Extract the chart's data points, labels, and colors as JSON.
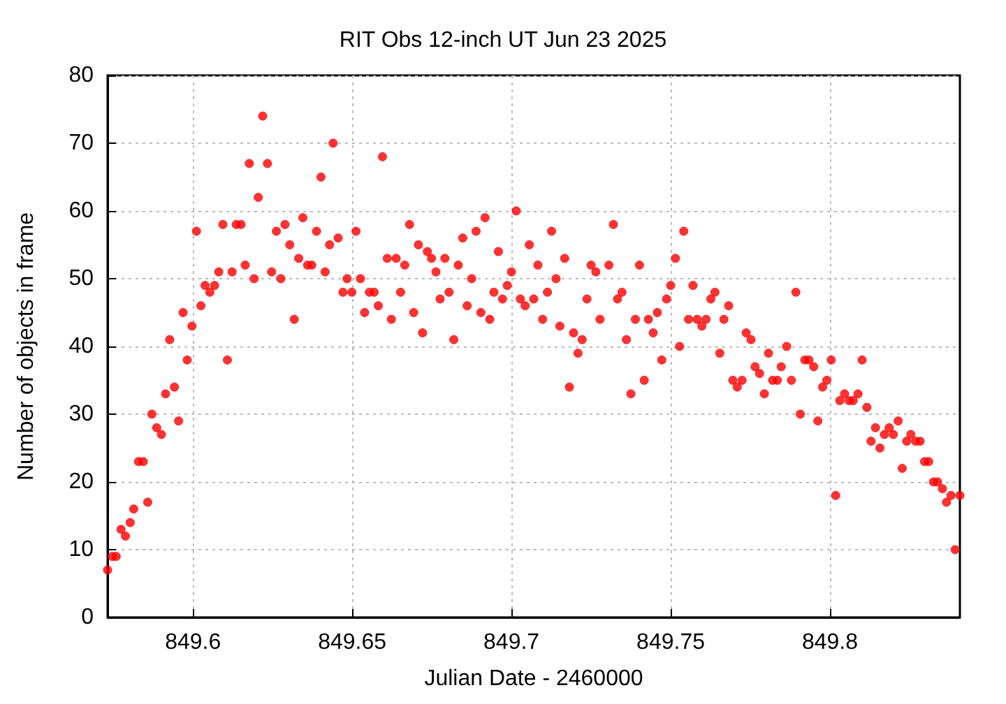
{
  "chart_data": {
    "type": "scatter",
    "title": "RIT Obs 12-inch UT Jun 23 2025",
    "xlabel": "Julian Date - 2460000",
    "ylabel": "Number of objects in frame",
    "x": [
      849.5732,
      849.5747,
      849.5759,
      849.5774,
      849.5788,
      849.5803,
      849.5814,
      849.5829,
      849.5844,
      849.5858,
      849.5871,
      849.5886,
      849.5901,
      849.5914,
      849.5927,
      849.5942,
      849.5955,
      849.5969,
      849.5982,
      849.5997,
      849.6011,
      849.6025,
      849.6038,
      849.6053,
      849.6068,
      849.6081,
      849.6094,
      849.6108,
      849.6123,
      849.6136,
      849.6151,
      849.6164,
      849.6177,
      849.6192,
      849.6205,
      849.6219,
      849.6234,
      849.6247,
      849.6262,
      849.6276,
      849.6289,
      849.6304,
      849.6318,
      849.6332,
      849.6345,
      849.636,
      849.6373,
      849.6388,
      849.6402,
      849.6415,
      849.6429,
      849.644,
      849.6456,
      849.6471,
      849.6484,
      849.6499,
      849.6512,
      849.6526,
      849.6539,
      849.6554,
      849.6569,
      849.6582,
      849.6595,
      849.661,
      849.6623,
      849.6638,
      849.6652,
      849.6665,
      849.668,
      849.6693,
      849.6708,
      849.6721,
      849.6736,
      849.6749,
      849.6763,
      849.6776,
      849.6791,
      849.6804,
      849.6819,
      849.6833,
      849.6847,
      849.6861,
      849.6875,
      849.6889,
      849.6904,
      849.6917,
      849.6932,
      849.6945,
      849.6959,
      849.6972,
      849.6987,
      849.7,
      849.7015,
      849.7028,
      849.7043,
      849.7056,
      849.707,
      849.7083,
      849.7098,
      849.7113,
      849.7126,
      849.714,
      849.7152,
      849.7167,
      849.7182,
      849.7195,
      849.7209,
      849.7222,
      849.7237,
      849.725,
      849.7265,
      849.7278,
      849.7306,
      849.732,
      849.7333,
      849.7347,
      849.7361,
      849.7375,
      849.7389,
      849.7402,
      849.7417,
      849.743,
      849.7445,
      849.7458,
      849.7472,
      849.7487,
      849.75,
      849.7515,
      849.7528,
      849.7541,
      849.7556,
      849.757,
      849.7583,
      849.7598,
      849.7611,
      849.7626,
      849.7639,
      849.7654,
      849.7667,
      849.7682,
      849.7695,
      849.7709,
      849.7724,
      849.7737,
      849.7752,
      849.7765,
      849.7779,
      849.7794,
      849.7807,
      849.782,
      849.7835,
      849.7847,
      849.7864,
      849.7879,
      849.7893,
      849.7907,
      849.7921,
      849.7934,
      849.7949,
      849.7962,
      849.7977,
      849.799,
      849.8004,
      849.8018,
      849.8031,
      849.8046,
      849.806,
      849.8073,
      849.8088,
      849.8101,
      849.8116,
      849.8129,
      849.8143,
      849.8157,
      849.8171,
      849.8186,
      849.8199,
      849.8214,
      849.8227,
      849.8241,
      849.8254,
      849.8269,
      849.8283,
      849.8297,
      849.831,
      849.8325,
      849.8338,
      849.8353,
      849.8366,
      849.838,
      849.8393,
      849.8408
    ],
    "values": [
      7,
      9,
      9,
      13,
      12,
      14,
      16,
      23,
      23,
      17,
      30,
      28,
      27,
      33,
      41,
      34,
      29,
      45,
      38,
      43,
      57,
      46,
      49,
      48,
      49,
      51,
      58,
      38,
      51,
      58,
      58,
      52,
      67,
      50,
      62,
      74,
      67,
      51,
      57,
      50,
      58,
      55,
      44,
      53,
      59,
      52,
      52,
      57,
      65,
      51,
      55,
      70,
      56,
      48,
      50,
      48,
      57,
      50,
      45,
      48,
      48,
      46,
      68,
      53,
      44,
      53,
      48,
      52,
      58,
      45,
      55,
      42,
      54,
      53,
      51,
      47,
      53,
      48,
      41,
      52,
      56,
      46,
      50,
      57,
      45,
      59,
      44,
      48,
      54,
      47,
      49,
      51,
      60,
      47,
      46,
      55,
      47,
      52,
      44,
      48,
      57,
      50,
      43,
      53,
      34,
      42,
      39,
      41,
      47,
      52,
      51,
      44,
      52,
      58,
      47,
      48,
      41,
      33,
      44,
      52,
      35,
      44,
      42,
      45,
      38,
      47,
      49,
      53,
      40,
      57,
      44,
      49,
      44,
      43,
      44,
      47,
      48,
      39,
      44,
      46,
      35,
      34,
      35,
      42,
      41,
      37,
      36,
      33,
      39,
      35,
      35,
      37,
      40,
      35,
      48,
      30,
      38,
      38,
      37,
      29,
      34,
      35,
      38,
      18,
      32,
      33,
      32,
      32,
      33,
      38,
      31,
      26,
      28,
      25,
      27,
      28,
      27,
      29,
      22,
      26,
      27,
      26,
      26,
      23,
      23,
      20,
      20,
      19,
      17,
      18,
      10,
      18
    ],
    "color": "#ff0000",
    "marker": "circle",
    "xlim": [
      849.5732,
      849.8408
    ],
    "xticks": [
      849.6,
      849.65,
      849.7,
      849.75,
      849.8
    ],
    "ylim": [
      0,
      80
    ],
    "yticks": [
      0,
      10,
      20,
      30,
      40,
      50,
      60,
      70,
      80
    ],
    "grid": true
  }
}
